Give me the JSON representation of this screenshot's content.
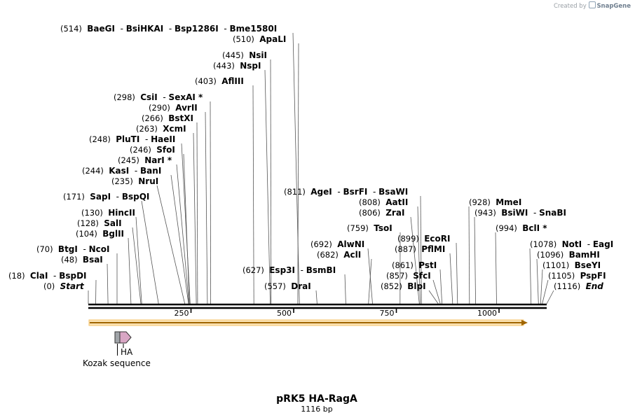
{
  "credit": {
    "prefix": "Created by",
    "brand": "SnapGene"
  },
  "plasmid": {
    "name": "pRK5 HA-RagA",
    "length_label": "1116 bp",
    "length": 1116
  },
  "scale_ticks": [
    "250",
    "500",
    "750",
    "1000"
  ],
  "features": [
    {
      "name": "HA"
    },
    {
      "name": "Kozak sequence"
    }
  ],
  "sites": [
    {
      "label_pos": "(514)",
      "enzymes": [
        "BaeGI",
        "BsiHKAI",
        "Bsp1286I",
        "Bme1580I"
      ]
    },
    {
      "label_pos": "(510)",
      "enzymes": [
        "ApaLI"
      ]
    },
    {
      "label_pos": "(445)",
      "enzymes": [
        "NsiI"
      ]
    },
    {
      "label_pos": "(443)",
      "enzymes": [
        "NspI"
      ]
    },
    {
      "label_pos": "(403)",
      "enzymes": [
        "AflIII"
      ]
    },
    {
      "label_pos": "(298)",
      "enzymes": [
        "CsiI",
        "SexAI *"
      ]
    },
    {
      "label_pos": "(290)",
      "enzymes": [
        "AvrII"
      ]
    },
    {
      "label_pos": "(266)",
      "enzymes": [
        "BstXI"
      ]
    },
    {
      "label_pos": "(263)",
      "enzymes": [
        "XcmI"
      ]
    },
    {
      "label_pos": "(248)",
      "enzymes": [
        "PluTI",
        "HaeII"
      ]
    },
    {
      "label_pos": "(246)",
      "enzymes": [
        "SfoI"
      ]
    },
    {
      "label_pos": "(245)",
      "enzymes": [
        "NarI *"
      ]
    },
    {
      "label_pos": "(244)",
      "enzymes": [
        "KasI",
        "BanI"
      ]
    },
    {
      "label_pos": "(235)",
      "enzymes": [
        "NruI"
      ]
    },
    {
      "label_pos": "(171)",
      "enzymes": [
        "SapI",
        "BspQI"
      ]
    },
    {
      "label_pos": "(130)",
      "enzymes": [
        "HincII"
      ]
    },
    {
      "label_pos": "(128)",
      "enzymes": [
        "SalI"
      ]
    },
    {
      "label_pos": "(104)",
      "enzymes": [
        "BglII"
      ]
    },
    {
      "label_pos": "(70)",
      "enzymes": [
        "BtgI",
        "NcoI"
      ]
    },
    {
      "label_pos": "(48)",
      "enzymes": [
        "BsaI"
      ]
    },
    {
      "label_pos": "(18)",
      "enzymes": [
        "ClaI",
        "BspDI"
      ]
    },
    {
      "label_pos": "(0)",
      "enzymes": [
        "Start"
      ]
    },
    {
      "label_pos": "(627)",
      "enzymes": [
        "Esp3I",
        "BsmBI"
      ]
    },
    {
      "label_pos": "(557)",
      "enzymes": [
        "DraI"
      ]
    },
    {
      "label_pos": "(811)",
      "enzymes": [
        "AgeI",
        "BsrFI",
        "BsaWI"
      ]
    },
    {
      "label_pos": "(808)",
      "enzymes": [
        "AatII"
      ]
    },
    {
      "label_pos": "(806)",
      "enzymes": [
        "ZraI"
      ]
    },
    {
      "label_pos": "(759)",
      "enzymes": [
        "TsoI"
      ]
    },
    {
      "label_pos": "(692)",
      "enzymes": [
        "AlwNI"
      ]
    },
    {
      "label_pos": "(682)",
      "enzymes": [
        "AclI"
      ]
    },
    {
      "label_pos": "(899)",
      "enzymes": [
        "EcoRI"
      ]
    },
    {
      "label_pos": "(887)",
      "enzymes": [
        "PflMI"
      ]
    },
    {
      "label_pos": "(861)",
      "enzymes": [
        "PstI"
      ]
    },
    {
      "label_pos": "(857)",
      "enzymes": [
        "SfcI"
      ]
    },
    {
      "label_pos": "(852)",
      "enzymes": [
        "BlpI"
      ]
    },
    {
      "label_pos": "(928)",
      "enzymes": [
        "MmeI"
      ]
    },
    {
      "label_pos": "(943)",
      "enzymes": [
        "BsiWI",
        "SnaBI"
      ]
    },
    {
      "label_pos": "(994)",
      "enzymes": [
        "BclI *"
      ]
    },
    {
      "label_pos": "(1078)",
      "enzymes": [
        "NotI",
        "EagI"
      ]
    },
    {
      "label_pos": "(1096)",
      "enzymes": [
        "BamHI"
      ]
    },
    {
      "label_pos": "(1101)",
      "enzymes": [
        "BseYI"
      ]
    },
    {
      "label_pos": "(1105)",
      "enzymes": [
        "PspFI"
      ]
    },
    {
      "label_pos": "(1116)",
      "enzymes": [
        "End"
      ]
    }
  ]
}
